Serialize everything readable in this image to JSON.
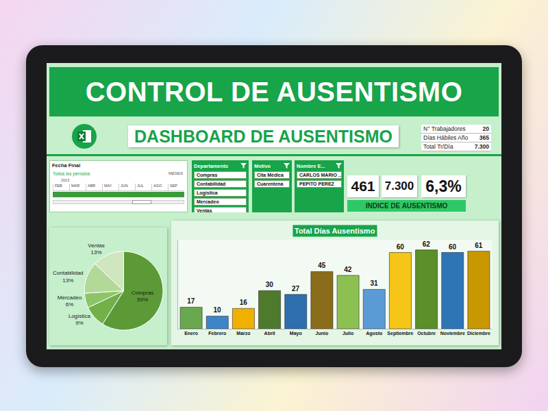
{
  "header": {
    "title": "CONTROL DE AUSENTISMO",
    "subtitle": "DASHBOARD DE AUSENTISMO"
  },
  "summary_table": {
    "rows": [
      [
        "N° Trabajadores",
        "20"
      ],
      [
        "Días Hábiles Año",
        "365"
      ],
      [
        "Total Tr/Día",
        "7.300"
      ]
    ]
  },
  "timeline": {
    "title": "Fecha Final",
    "period": "Todos los períodos",
    "unit": "MESES",
    "year": "2023",
    "months": [
      "FEB",
      "MAR",
      "ABR",
      "MAY",
      "JUN",
      "JUL",
      "AGO",
      "SEP"
    ]
  },
  "slicers": [
    {
      "title": "Departamento",
      "items": [
        "Compras",
        "Contabilidad",
        "Logística",
        "Mercadeo",
        "Ventas"
      ]
    },
    {
      "title": "Motivo",
      "items": [
        "Cita Médica",
        "Cuarentena"
      ]
    },
    {
      "title": "Nombre E...",
      "items": [
        "CARLOS MARIO ...",
        "PEPITO PEREZ"
      ]
    }
  ],
  "kpis": {
    "values": [
      "461",
      "7.300",
      "6,3%"
    ],
    "label": "INDICE DE AUSENTISMO"
  },
  "chart_data": [
    {
      "type": "pie",
      "categories": [
        "Compras",
        "Logística",
        "Mercadeo",
        "Contabilidad",
        "Ventas"
      ],
      "values": [
        59,
        9,
        6,
        13,
        13
      ],
      "value_labels": [
        "59%",
        "9%",
        "6%",
        "13%",
        "13%"
      ],
      "colors": [
        "#5b9a36",
        "#72b04a",
        "#8ec468",
        "#b2d998",
        "#cfe6be"
      ],
      "data_labels": true
    },
    {
      "type": "bar",
      "title": "Total Días Ausentismo",
      "categories": [
        "Enero",
        "Febrero",
        "Marzo",
        "Abril",
        "Mayo",
        "Junio",
        "Julio",
        "Agosto",
        "Septiembre",
        "Octubre",
        "Noviembre",
        "Diciembre"
      ],
      "values": [
        17,
        10,
        16,
        30,
        27,
        45,
        42,
        31,
        60,
        62,
        60,
        61
      ],
      "colors": [
        "#6aa84f",
        "#3d85c6",
        "#f1b000",
        "#4e7a2e",
        "#2e6fb0",
        "#8a6d1a",
        "#8cc152",
        "#5b9bd5",
        "#f5c518",
        "#5b8f29",
        "#2e75b6",
        "#c99700"
      ],
      "ylim": [
        0,
        70
      ],
      "yticks": [],
      "grid": false,
      "data_labels": true,
      "tick_labels": "x"
    }
  ]
}
